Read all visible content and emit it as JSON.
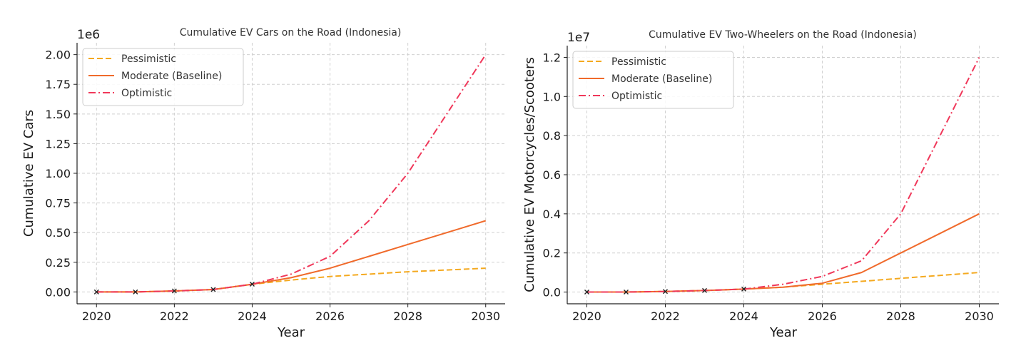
{
  "chart_data": [
    {
      "type": "line",
      "title": "Cumulative EV Cars on the Road (Indonesia)",
      "xlabel": "Year",
      "ylabel": "Cumulative EV Cars",
      "y_multiplier": "1e6",
      "xlim": [
        2019.5,
        2030.5
      ],
      "ylim": [
        -0.1,
        2.1
      ],
      "x_ticks": [
        2020,
        2022,
        2024,
        2026,
        2028,
        2030
      ],
      "y_ticks": [
        0.0,
        0.25,
        0.5,
        0.75,
        1.0,
        1.25,
        1.5,
        1.75,
        2.0
      ],
      "y_tick_labels": [
        "0.00",
        "0.25",
        "0.50",
        "0.75",
        "1.00",
        "1.25",
        "1.50",
        "1.75",
        "2.00"
      ],
      "grid": true,
      "legend_position": "top-left",
      "historical": {
        "x": [
          2020,
          2021,
          2022,
          2023,
          2024
        ],
        "values": [
          0.0,
          0.0,
          0.008,
          0.02,
          0.065
        ]
      },
      "series": [
        {
          "name": "Pessimistic",
          "style": "dashed",
          "color": "#F4A91F",
          "x": [
            2020,
            2021,
            2022,
            2023,
            2024,
            2025,
            2026,
            2027,
            2028,
            2029,
            2030
          ],
          "values": [
            0.0,
            0.0,
            0.008,
            0.02,
            0.065,
            0.1,
            0.13,
            0.15,
            0.17,
            0.185,
            0.2
          ]
        },
        {
          "name": "Moderate (Baseline)",
          "style": "solid",
          "color": "#F06A2B",
          "x": [
            2020,
            2021,
            2022,
            2023,
            2024,
            2025,
            2026,
            2027,
            2028,
            2029,
            2030
          ],
          "values": [
            0.0,
            0.0,
            0.008,
            0.02,
            0.065,
            0.12,
            0.2,
            0.3,
            0.4,
            0.5,
            0.6
          ]
        },
        {
          "name": "Optimistic",
          "style": "dashdot",
          "color": "#F0385A",
          "x": [
            2020,
            2021,
            2022,
            2023,
            2024,
            2025,
            2026,
            2027,
            2028,
            2029,
            2030
          ],
          "values": [
            0.0,
            0.0,
            0.008,
            0.02,
            0.065,
            0.15,
            0.3,
            0.6,
            1.0,
            1.5,
            2.0
          ]
        }
      ]
    },
    {
      "type": "line",
      "title": "Cumulative EV Two-Wheelers on the Road (Indonesia)",
      "xlabel": "Year",
      "ylabel": "Cumulative EV Motorcycles/Scooters",
      "y_multiplier": "1e7",
      "xlim": [
        2019.5,
        2030.5
      ],
      "ylim": [
        -0.06,
        1.26
      ],
      "x_ticks": [
        2020,
        2022,
        2024,
        2026,
        2028,
        2030
      ],
      "y_ticks": [
        0.0,
        0.2,
        0.4,
        0.6,
        0.8,
        1.0,
        1.2
      ],
      "y_tick_labels": [
        "0.0",
        "0.2",
        "0.4",
        "0.6",
        "0.8",
        "1.0",
        "1.2"
      ],
      "grid": true,
      "legend_position": "top-left",
      "historical": {
        "x": [
          2020,
          2021,
          2022,
          2023,
          2024
        ],
        "values": [
          0.0,
          0.0,
          0.003,
          0.008,
          0.015
        ]
      },
      "series": [
        {
          "name": "Pessimistic",
          "style": "dashed",
          "color": "#F4A91F",
          "x": [
            2020,
            2021,
            2022,
            2023,
            2024,
            2025,
            2026,
            2027,
            2028,
            2029,
            2030
          ],
          "values": [
            0.0,
            0.0,
            0.003,
            0.008,
            0.015,
            0.025,
            0.04,
            0.055,
            0.07,
            0.085,
            0.1
          ]
        },
        {
          "name": "Moderate (Baseline)",
          "style": "solid",
          "color": "#F06A2B",
          "x": [
            2020,
            2021,
            2022,
            2023,
            2024,
            2025,
            2026,
            2027,
            2028,
            2029,
            2030
          ],
          "values": [
            0.0,
            0.0,
            0.003,
            0.008,
            0.015,
            0.025,
            0.045,
            0.1,
            0.2,
            0.3,
            0.4
          ]
        },
        {
          "name": "Optimistic",
          "style": "dashdot",
          "color": "#F0385A",
          "x": [
            2020,
            2021,
            2022,
            2023,
            2024,
            2025,
            2026,
            2027,
            2028,
            2029,
            2030
          ],
          "values": [
            0.0,
            0.0,
            0.003,
            0.008,
            0.015,
            0.04,
            0.08,
            0.16,
            0.4,
            0.8,
            1.2
          ]
        }
      ]
    }
  ]
}
